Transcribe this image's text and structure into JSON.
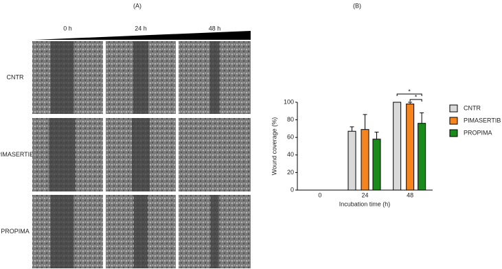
{
  "panel_a": {
    "label": "(A)",
    "columns": [
      "0 h",
      "24 h",
      "48 h"
    ],
    "rows": [
      "CNTR",
      "PIMASERTIB",
      "PROPIMA"
    ]
  },
  "chart_data": {
    "type": "bar",
    "label": "(B)",
    "y_label": "Wound coverage (%)",
    "x_label": "Incubation time (h)",
    "categories": [
      "0",
      "24",
      "48"
    ],
    "series": [
      {
        "name": "CNTR",
        "color": "#d9d9d9",
        "values": [
          0,
          67,
          100
        ],
        "errors": [
          0,
          5,
          0
        ]
      },
      {
        "name": "PIMASERTIB",
        "color": "#f5841f",
        "values": [
          0,
          69,
          98
        ],
        "errors": [
          0,
          17,
          2
        ]
      },
      {
        "name": "PROPIMA",
        "color": "#1a8a1a",
        "values": [
          0,
          58,
          76
        ],
        "errors": [
          0,
          8,
          12
        ]
      }
    ],
    "ylim": [
      0,
      100
    ],
    "yticks": [
      0,
      20,
      40,
      60,
      80,
      100
    ],
    "annotations": [
      "*",
      "*"
    ],
    "legend": "right"
  }
}
